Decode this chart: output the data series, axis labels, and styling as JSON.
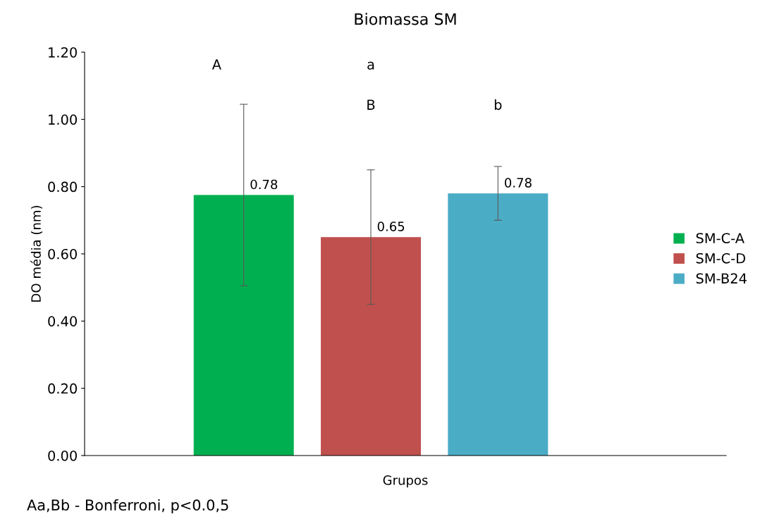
{
  "chart_data": {
    "type": "bar",
    "title": "Biomassa SM",
    "xlabel": "Grupos",
    "ylabel": "DO média (nm)",
    "categories": [
      null
    ],
    "series": [
      {
        "name": "SM-C-A",
        "color": "#00b050",
        "values": [
          0.775
        ],
        "errors": [
          0.27
        ],
        "value_labels": [
          "0.78"
        ]
      },
      {
        "name": "SM-C-D",
        "color": "#c0504d",
        "values": [
          0.65
        ],
        "errors": [
          0.2
        ],
        "value_labels": [
          "0.65"
        ]
      },
      {
        "name": "SM-B24",
        "color": "#4bacc6",
        "values": [
          0.78
        ],
        "errors": [
          0.08
        ],
        "value_labels": [
          "0.78"
        ]
      }
    ],
    "ylim": [
      0,
      1.2
    ],
    "yticks": [
      {
        "value": 0,
        "label": "0.00"
      },
      {
        "value": 0.2,
        "label": "0.20"
      },
      {
        "value": 0.4,
        "label": "0.40"
      },
      {
        "value": 0.6,
        "label": "0.60"
      },
      {
        "value": 0.8,
        "label": "0.80"
      },
      {
        "value": 1.0,
        "label": "1.00"
      },
      {
        "value": 1.2,
        "label": "1.20"
      }
    ],
    "grid": false,
    "legend": "right",
    "annotations": [
      "A",
      "a",
      "B",
      "b",
      "Aa,Bb - Bonferroni, p<0.0,5"
    ]
  }
}
